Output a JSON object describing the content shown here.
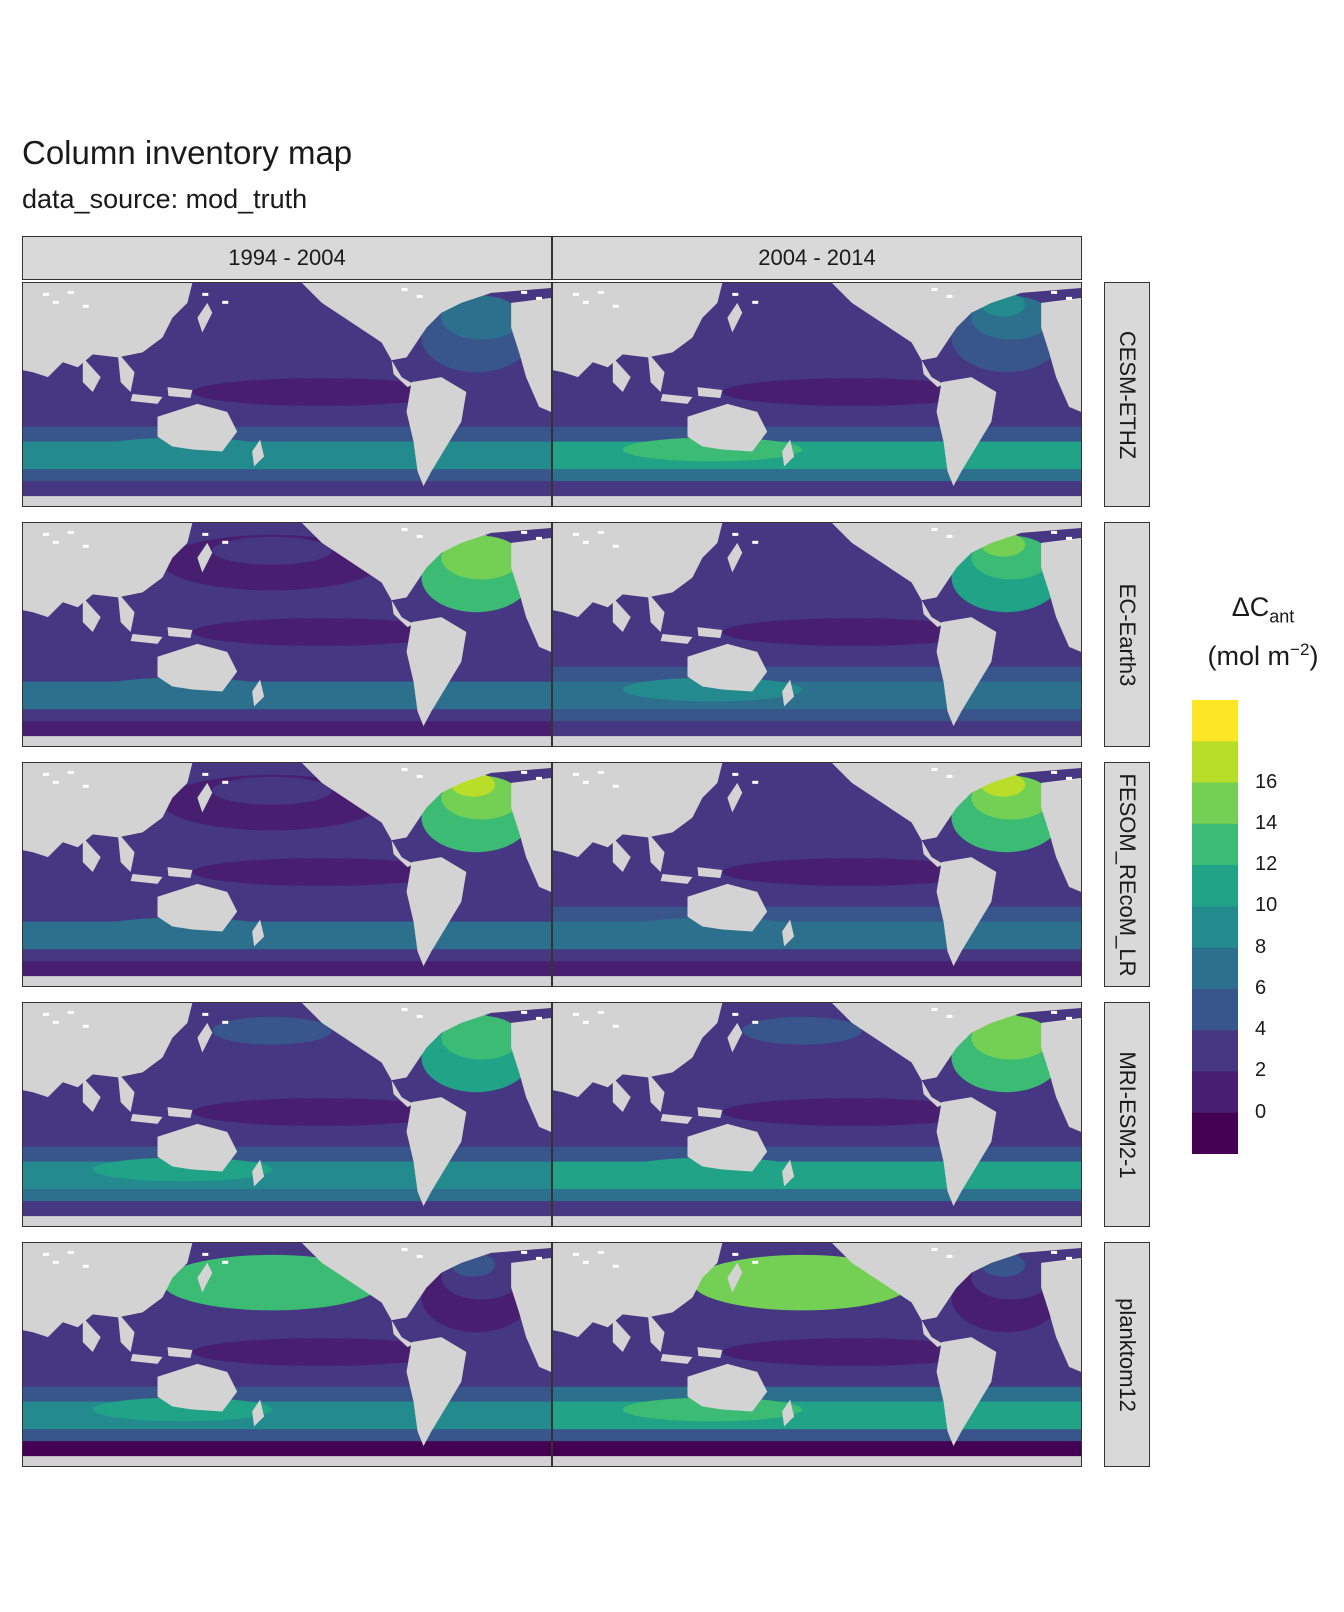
{
  "title": "Column inventory map",
  "subtitle": "data_source: mod_truth",
  "columns": [
    "1994 - 2004",
    "2004 - 2014"
  ],
  "rows": [
    "CESM-ETHZ",
    "EC-Earth3",
    "FESOM_REcoM_LR",
    "MRI-ESM2-1",
    "planktom12"
  ],
  "legend": {
    "title_main": "ΔC",
    "title_sub": "ant",
    "unit_open": "(mol m",
    "unit_sup": "−2",
    "unit_close": ")",
    "ticks": [
      "16",
      "14",
      "12",
      "10",
      "8",
      "6",
      "4",
      "2",
      "0"
    ],
    "colors": [
      "#fde725",
      "#b8de29",
      "#73d055",
      "#3cbb75",
      "#20a386",
      "#238a8d",
      "#2d708e",
      "#39568c",
      "#453781",
      "#481f70",
      "#440154"
    ]
  },
  "colors": {
    "land": "#d3d3d3",
    "ocean_base": "#39568c"
  },
  "chart_data": {
    "type": "heatmap",
    "title": "Column inventory map",
    "subtitle": "data_source: mod_truth",
    "facet_columns": [
      "1994 - 2004",
      "2004 - 2014"
    ],
    "facet_rows": [
      "CESM-ETHZ",
      "EC-Earth3",
      "FESOM_REcoM_LR",
      "MRI-ESM2-1",
      "planktom12"
    ],
    "color_scale": "viridis (binned)",
    "legend_ticks": [
      0,
      2,
      4,
      6,
      8,
      10,
      12,
      14,
      16
    ],
    "legend_placement": "right",
    "panels": [
      {
        "model": "CESM-ETHZ",
        "period": "1994 - 2004",
        "north_atlantic": 8,
        "north_pacific": 3,
        "southern_band": 9,
        "indian": 5,
        "southern_edge": 4
      },
      {
        "model": "CESM-ETHZ",
        "period": "2004 - 2014",
        "north_atlantic": 9,
        "north_pacific": 3,
        "southern_band": 12,
        "indian": 6,
        "southern_edge": 4
      },
      {
        "model": "EC-Earth3",
        "period": "1994 - 2004",
        "north_atlantic": 16,
        "north_pacific": 2,
        "southern_band": 7,
        "indian": 4,
        "southern_edge": 2
      },
      {
        "model": "EC-Earth3",
        "period": "2004 - 2014",
        "north_atlantic": 15,
        "north_pacific": 3,
        "southern_band": 8,
        "indian": 5,
        "southern_edge": 3
      },
      {
        "model": "FESOM_REcoM_LR",
        "period": "1994 - 2004",
        "north_atlantic": 17,
        "north_pacific": 2,
        "southern_band": 7,
        "indian": 4,
        "southern_edge": 1
      },
      {
        "model": "FESOM_REcoM_LR",
        "period": "2004 - 2014",
        "north_atlantic": 17,
        "north_pacific": 3,
        "southern_band": 7,
        "indian": 5,
        "southern_edge": 2
      },
      {
        "model": "MRI-ESM2-1",
        "period": "1994 - 2004",
        "north_atlantic": 14,
        "north_pacific": 4,
        "southern_band": 10,
        "indian": 5,
        "southern_edge": 4
      },
      {
        "model": "MRI-ESM2-1",
        "period": "2004 - 2014",
        "north_atlantic": 16,
        "north_pacific": 4,
        "southern_band": 11,
        "indian": 6,
        "southern_edge": 4
      },
      {
        "model": "planktom12",
        "period": "1994 - 2004",
        "north_atlantic": 5,
        "north_pacific": 13,
        "southern_band": 10,
        "indian": 6,
        "southern_edge": 0
      },
      {
        "model": "planktom12",
        "period": "2004 - 2014",
        "north_atlantic": 5,
        "north_pacific": 15,
        "southern_band": 12,
        "indian": 7,
        "southern_edge": 0
      }
    ]
  }
}
